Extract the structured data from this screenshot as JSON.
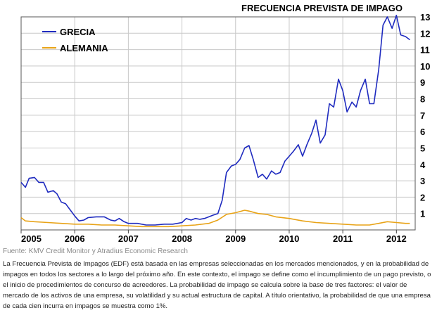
{
  "chart_data": {
    "type": "line",
    "title": "FRECUENCIA PREVISTA DE IMPAGO",
    "xlabel": "",
    "ylabel": "",
    "xlim": [
      2005,
      2012.35
    ],
    "ylim": [
      0,
      13
    ],
    "y_ticks": [
      "1",
      "2",
      "3",
      "4",
      "5",
      "6",
      "7",
      "8",
      "9",
      "10",
      "11",
      "12",
      "13"
    ],
    "x_ticks": [
      {
        "value": 2005,
        "label": "2005"
      },
      {
        "value": 2006,
        "label": "2006"
      },
      {
        "value": 2007,
        "label": "2007"
      },
      {
        "value": 2008,
        "label": "2008"
      },
      {
        "value": 2009,
        "label": "2009"
      },
      {
        "value": 2010,
        "label": "2010"
      },
      {
        "value": 2011,
        "label": "2011"
      },
      {
        "value": 2012,
        "label": "2012"
      }
    ],
    "grid": true,
    "legend_position": "top-left",
    "series": [
      {
        "name": "GRECIA",
        "color": "#1f2bbf",
        "points": [
          [
            2005.0,
            2.9
          ],
          [
            2005.08,
            2.6
          ],
          [
            2005.15,
            3.15
          ],
          [
            2005.25,
            3.2
          ],
          [
            2005.33,
            2.9
          ],
          [
            2005.42,
            2.9
          ],
          [
            2005.5,
            2.3
          ],
          [
            2005.6,
            2.4
          ],
          [
            2005.67,
            2.2
          ],
          [
            2005.75,
            1.7
          ],
          [
            2005.83,
            1.6
          ],
          [
            2005.92,
            1.2
          ],
          [
            2006.0,
            0.85
          ],
          [
            2006.08,
            0.55
          ],
          [
            2006.17,
            0.6
          ],
          [
            2006.25,
            0.75
          ],
          [
            2006.4,
            0.8
          ],
          [
            2006.55,
            0.8
          ],
          [
            2006.67,
            0.6
          ],
          [
            2006.75,
            0.55
          ],
          [
            2006.83,
            0.7
          ],
          [
            2006.92,
            0.5
          ],
          [
            2007.0,
            0.4
          ],
          [
            2007.17,
            0.4
          ],
          [
            2007.33,
            0.3
          ],
          [
            2007.5,
            0.3
          ],
          [
            2007.67,
            0.35
          ],
          [
            2007.83,
            0.35
          ],
          [
            2008.0,
            0.45
          ],
          [
            2008.08,
            0.7
          ],
          [
            2008.17,
            0.6
          ],
          [
            2008.25,
            0.7
          ],
          [
            2008.33,
            0.65
          ],
          [
            2008.42,
            0.7
          ],
          [
            2008.5,
            0.8
          ],
          [
            2008.58,
            0.9
          ],
          [
            2008.67,
            1.0
          ],
          [
            2008.75,
            1.8
          ],
          [
            2008.83,
            3.5
          ],
          [
            2008.92,
            3.9
          ],
          [
            2009.0,
            4.0
          ],
          [
            2009.08,
            4.3
          ],
          [
            2009.17,
            5.0
          ],
          [
            2009.25,
            5.15
          ],
          [
            2009.33,
            4.3
          ],
          [
            2009.42,
            3.2
          ],
          [
            2009.5,
            3.4
          ],
          [
            2009.58,
            3.1
          ],
          [
            2009.67,
            3.6
          ],
          [
            2009.75,
            3.4
          ],
          [
            2009.83,
            3.5
          ],
          [
            2009.92,
            4.2
          ],
          [
            2010.0,
            4.5
          ],
          [
            2010.08,
            4.8
          ],
          [
            2010.17,
            5.2
          ],
          [
            2010.25,
            4.5
          ],
          [
            2010.33,
            5.2
          ],
          [
            2010.42,
            5.9
          ],
          [
            2010.5,
            6.7
          ],
          [
            2010.58,
            5.3
          ],
          [
            2010.67,
            5.8
          ],
          [
            2010.75,
            7.7
          ],
          [
            2010.83,
            7.5
          ],
          [
            2010.92,
            9.2
          ],
          [
            2011.0,
            8.5
          ],
          [
            2011.08,
            7.2
          ],
          [
            2011.17,
            7.8
          ],
          [
            2011.25,
            7.5
          ],
          [
            2011.33,
            8.5
          ],
          [
            2011.42,
            9.2
          ],
          [
            2011.5,
            7.7
          ],
          [
            2011.58,
            7.7
          ],
          [
            2011.67,
            9.8
          ],
          [
            2011.75,
            12.5
          ],
          [
            2011.83,
            13.0
          ],
          [
            2011.92,
            12.3
          ],
          [
            2012.0,
            13.2
          ],
          [
            2012.08,
            11.9
          ],
          [
            2012.17,
            11.8
          ],
          [
            2012.25,
            11.6
          ]
        ]
      },
      {
        "name": "ALEMANIA",
        "color": "#e8a317",
        "points": [
          [
            2005.0,
            0.75
          ],
          [
            2005.08,
            0.55
          ],
          [
            2005.25,
            0.5
          ],
          [
            2005.5,
            0.45
          ],
          [
            2005.75,
            0.4
          ],
          [
            2006.0,
            0.35
          ],
          [
            2006.25,
            0.35
          ],
          [
            2006.5,
            0.3
          ],
          [
            2006.75,
            0.3
          ],
          [
            2007.0,
            0.25
          ],
          [
            2007.25,
            0.2
          ],
          [
            2007.5,
            0.2
          ],
          [
            2007.75,
            0.2
          ],
          [
            2008.0,
            0.25
          ],
          [
            2008.25,
            0.3
          ],
          [
            2008.5,
            0.4
          ],
          [
            2008.67,
            0.6
          ],
          [
            2008.83,
            0.95
          ],
          [
            2009.0,
            1.05
          ],
          [
            2009.17,
            1.2
          ],
          [
            2009.25,
            1.15
          ],
          [
            2009.42,
            1.0
          ],
          [
            2009.58,
            0.95
          ],
          [
            2009.75,
            0.8
          ],
          [
            2010.0,
            0.7
          ],
          [
            2010.25,
            0.55
          ],
          [
            2010.5,
            0.45
          ],
          [
            2010.75,
            0.4
          ],
          [
            2011.0,
            0.35
          ],
          [
            2011.25,
            0.3
          ],
          [
            2011.5,
            0.3
          ],
          [
            2011.67,
            0.4
          ],
          [
            2011.83,
            0.5
          ],
          [
            2012.0,
            0.45
          ],
          [
            2012.17,
            0.4
          ],
          [
            2012.25,
            0.4
          ]
        ]
      }
    ]
  },
  "source": "Fuente: KMV Credit Monitor y Atradius Economic Research",
  "description": "La Frecuencia Prevista de Impagos (EDF) está basada en las empresas seleccionadas en los mercados mencionados, y en la probabilidad de impagos en todos los sectores a lo largo del próximo año. En este contexto, el impago se define como el incumplimiento de un pago previsto, o el inicio de procedimientos de concurso de acreedores. La probabilidad de impago se calcula sobre la base de tres factores: el valor de mercado de los activos de una empresa, su volatilidad y su actual estructura de capital. A título orientativo, la probabilidad de que una empresa de cada cien incurra en impagos se muestra como 1%."
}
